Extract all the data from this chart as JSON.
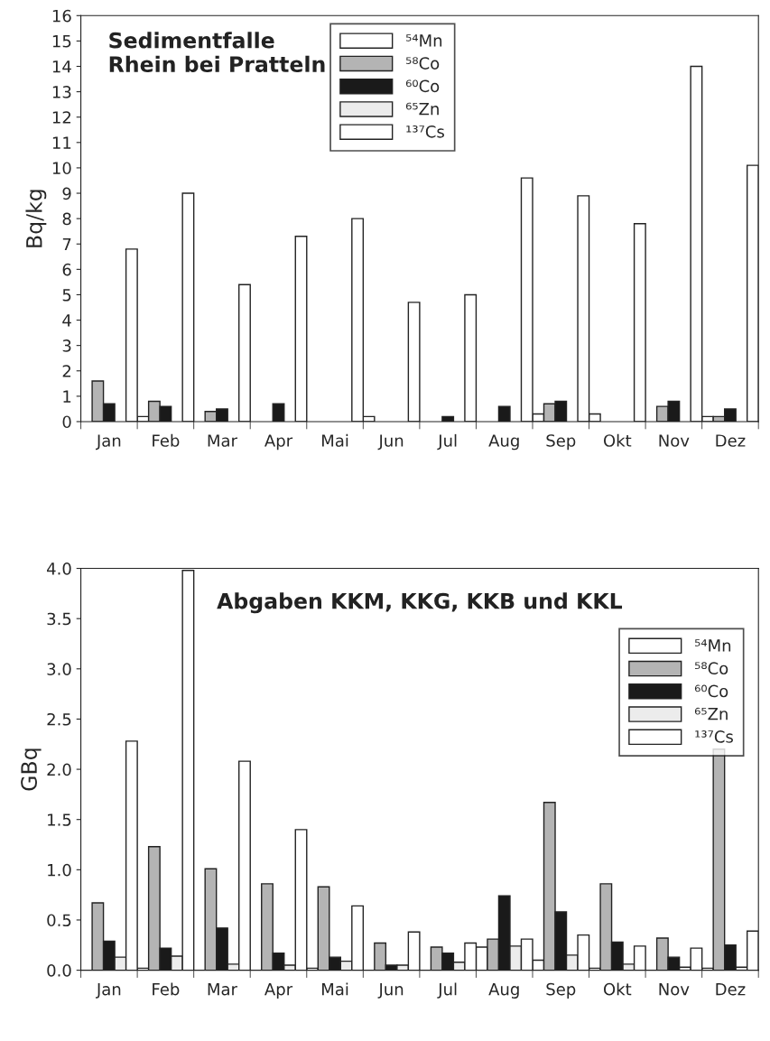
{
  "chart_data": [
    {
      "type": "bar",
      "title": "Sedimentfalle\nRhein bei Pratteln",
      "ylabel": "Bq/kg",
      "categories": [
        "Jan",
        "Feb",
        "Mar",
        "Apr",
        "Mai",
        "Jun",
        "Jul",
        "Aug",
        "Sep",
        "Okt",
        "Nov",
        "Dez"
      ],
      "ylim": [
        0,
        16
      ],
      "yticks": [
        0,
        1,
        2,
        3,
        4,
        5,
        6,
        7,
        8,
        9,
        10,
        11,
        12,
        13,
        14,
        15,
        16
      ],
      "legend": "top",
      "grid": false,
      "series": [
        {
          "name": "⁵⁴Mn",
          "color": "#ffffff",
          "values": [
            null,
            0.2,
            null,
            null,
            null,
            0.2,
            null,
            null,
            0.3,
            0.3,
            null,
            0.2
          ]
        },
        {
          "name": "⁵⁸Co",
          "color": "#b4b4b4",
          "values": [
            1.6,
            0.8,
            0.4,
            null,
            null,
            null,
            null,
            null,
            0.7,
            null,
            0.6,
            0.2
          ]
        },
        {
          "name": "⁶⁰Co",
          "color": "#1a1a1a",
          "values": [
            0.7,
            0.6,
            0.5,
            0.7,
            null,
            null,
            0.2,
            0.6,
            0.8,
            null,
            0.8,
            0.5
          ]
        },
        {
          "name": "⁶⁵Zn",
          "color": "#ececec",
          "values": [
            null,
            null,
            null,
            null,
            null,
            null,
            null,
            null,
            null,
            null,
            null,
            null
          ]
        },
        {
          "name": "¹³⁷Cs",
          "color": "#ffffff",
          "values": [
            6.8,
            9.0,
            5.4,
            7.3,
            8.0,
            4.7,
            5.0,
            9.6,
            8.9,
            7.8,
            14.0,
            10.1
          ]
        }
      ]
    },
    {
      "type": "bar",
      "title": "Abgaben KKM, KKG, KKB und KKL",
      "ylabel": "GBq",
      "categories": [
        "Jan",
        "Feb",
        "Mar",
        "Apr",
        "Mai",
        "Jun",
        "Jul",
        "Aug",
        "Sep",
        "Okt",
        "Nov",
        "Dez"
      ],
      "ylim": [
        0,
        4.0
      ],
      "yticks": [
        {
          "value": 0,
          "label": "0.0"
        },
        0.5,
        {
          "value": 1,
          "label": "1.0"
        },
        1.5,
        {
          "value": 2,
          "label": "2.0"
        },
        2.5,
        {
          "value": 3,
          "label": "3.0"
        },
        3.5,
        {
          "value": 4,
          "label": "4.0"
        }
      ],
      "legend": "right",
      "grid": false,
      "series": [
        {
          "name": "⁵⁴Mn",
          "color": "#ffffff",
          "values": [
            null,
            0.02,
            null,
            null,
            0.02,
            null,
            null,
            0.23,
            0.1,
            0.02,
            null,
            0.02
          ]
        },
        {
          "name": "⁵⁸Co",
          "color": "#b4b4b4",
          "values": [
            0.67,
            1.23,
            1.01,
            0.86,
            0.83,
            0.27,
            0.23,
            0.31,
            1.67,
            0.86,
            0.32,
            2.2
          ]
        },
        {
          "name": "⁶⁰Co",
          "color": "#1a1a1a",
          "values": [
            0.29,
            0.22,
            0.42,
            0.17,
            0.13,
            0.05,
            0.17,
            0.74,
            0.58,
            0.28,
            0.13,
            0.25
          ]
        },
        {
          "name": "⁶⁵Zn",
          "color": "#ececec",
          "values": [
            0.13,
            0.14,
            0.06,
            0.05,
            0.09,
            0.05,
            0.08,
            0.24,
            0.15,
            0.06,
            0.03,
            0.03
          ]
        },
        {
          "name": "¹³⁷Cs",
          "color": "#ffffff",
          "values": [
            2.28,
            3.98,
            2.08,
            1.4,
            0.64,
            0.38,
            0.27,
            0.31,
            0.35,
            0.24,
            0.22,
            0.39
          ]
        }
      ]
    }
  ]
}
